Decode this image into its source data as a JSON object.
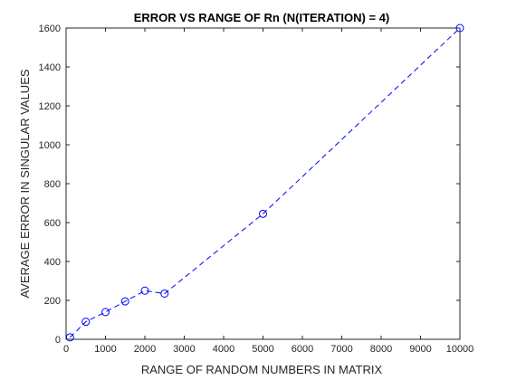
{
  "chart_data": {
    "type": "line",
    "title": "ERROR VS RANGE OF Rn (N(ITERATION) = 4)",
    "xlabel": "RANGE OF RANDOM NUMBERS IN MATRIX",
    "ylabel": "AVERAGE ERROR IN SINGULAR VALUES",
    "xlim": [
      0,
      10000
    ],
    "ylim": [
      0,
      1600
    ],
    "xticks": [
      0,
      1000,
      2000,
      3000,
      4000,
      5000,
      6000,
      7000,
      8000,
      9000,
      10000
    ],
    "yticks": [
      0,
      200,
      400,
      600,
      800,
      1000,
      1200,
      1400,
      1600
    ],
    "grid": false,
    "series": [
      {
        "color": "#0000ff",
        "line_style": "dashed",
        "marker": "circle",
        "x": [
          100,
          500,
          1000,
          1500,
          2000,
          2500,
          5000,
          10000
        ],
        "y": [
          10,
          90,
          140,
          195,
          250,
          235,
          645,
          1600
        ]
      }
    ]
  }
}
